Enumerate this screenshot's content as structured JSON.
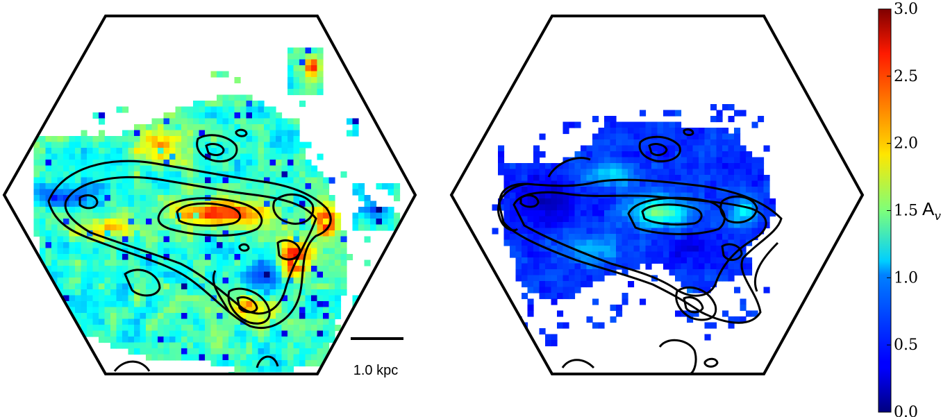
{
  "panels": [
    {
      "name": "left-panel",
      "level": "high"
    },
    {
      "name": "right-panel",
      "level": "low"
    }
  ],
  "scale_bar": {
    "label": "1.0 kpc"
  },
  "colorbar": {
    "label_main": "A",
    "label_sub": "v",
    "min": 0.0,
    "max": 3.0,
    "ticks": [
      "3.0",
      "2.5",
      "2.0",
      "1.5",
      "1.0",
      "0.5",
      "0.0"
    ],
    "colormap": "jet"
  }
}
